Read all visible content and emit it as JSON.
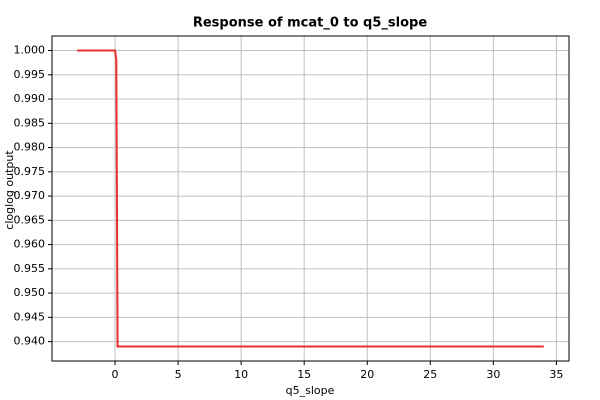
{
  "chart_data": {
    "type": "line",
    "title": "Response of mcat_0 to q5_slope",
    "x_label": "q5_slope",
    "y_label": "cloglog output",
    "x": [
      -3,
      0,
      0.1,
      0.2,
      34
    ],
    "series": [
      {
        "name": "mcat_0",
        "color": "#e8302c",
        "values": [
          1.0,
          1.0,
          0.998,
          0.939,
          0.939
        ]
      }
    ],
    "xlim": [
      -5,
      36
    ],
    "xticks": [
      0,
      5,
      10,
      15,
      20,
      25,
      30,
      35
    ],
    "ylim": [
      0.936,
      1.003
    ],
    "yticks": [
      {
        "value": 0.94,
        "label": "0.940"
      },
      0.945,
      {
        "value": 0.95,
        "label": "0.950"
      },
      0.955,
      {
        "value": 0.96,
        "label": "0.960"
      },
      0.965,
      {
        "value": 0.97,
        "label": "0.970"
      },
      0.975,
      {
        "value": 0.98,
        "label": "0.980"
      },
      0.985,
      {
        "value": 0.99,
        "label": "0.990"
      },
      0.995,
      {
        "value": 1,
        "label": "1.000"
      }
    ],
    "grid": true
  }
}
